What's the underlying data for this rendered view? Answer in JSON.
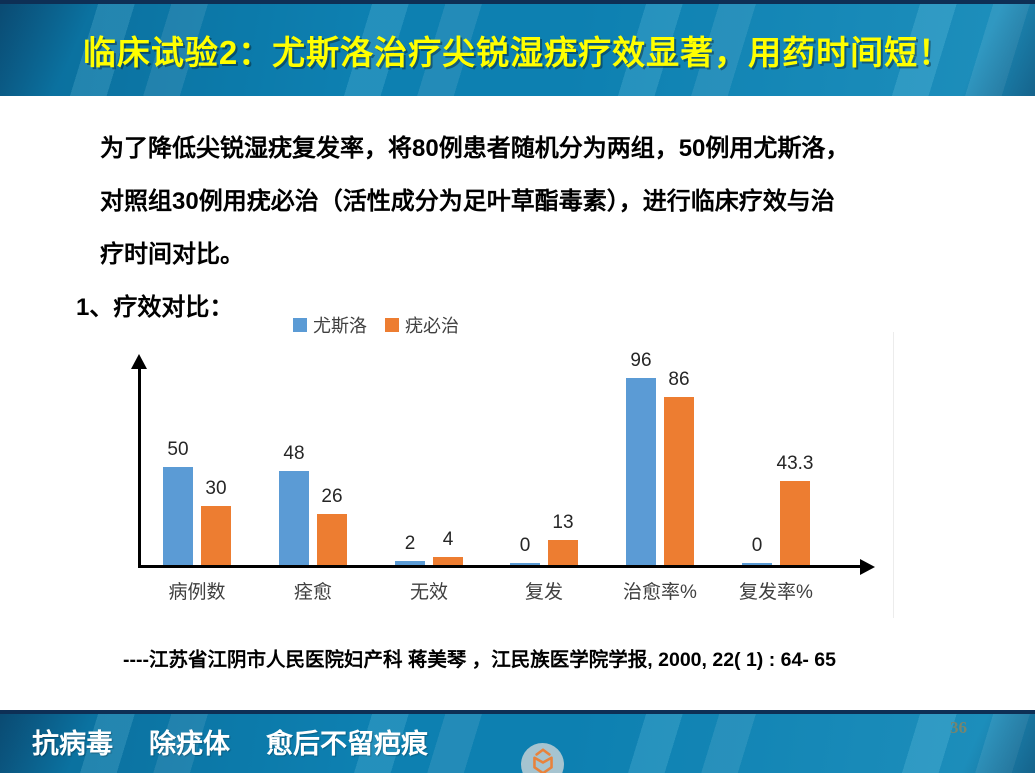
{
  "header": {
    "title": "临床试验2：尤斯洛治疗尖锐湿疣疗效显著，用药时间短！"
  },
  "body": {
    "lines": [
      "为了降低尖锐湿疣复发率，将80例患者随机分为两组，50例用尤斯洛，",
      "对照组30例用疣必治（活性成分为足叶草酯毒素），进行临床疗效与治",
      "疗时间对比。"
    ],
    "section_heading": "1、疗效对比："
  },
  "chart_data": {
    "type": "bar",
    "categories": [
      "病例数",
      "痊愈",
      "无效",
      "复发",
      "治愈率%",
      "复发率%"
    ],
    "series": [
      {
        "name": "尤斯洛",
        "color": "#5B9BD5",
        "values": [
          50,
          48,
          2,
          0,
          96,
          0
        ]
      },
      {
        "name": "疣必治",
        "color": "#ED7D31",
        "values": [
          30,
          26,
          4,
          13,
          86,
          43.3
        ]
      }
    ],
    "title": "",
    "xlabel": "",
    "ylabel": "",
    "ylim": [
      0,
      105
    ],
    "grid": false,
    "legend_position": "top-center",
    "value_labels": true,
    "axis_arrows": true
  },
  "citation": "----江苏省江阴市人民医院妇产科  蒋美琴  ，江民族医学院学报, 2000, 22( 1) : 64- 65",
  "footer": {
    "slogans": [
      "抗病毒",
      "除疣体",
      "愈后不留疤痕"
    ],
    "page_number": "36",
    "logo_icon": "orange-cube-logo-icon"
  },
  "colors": {
    "band_blue": "#0D80B1",
    "title_yellow": "#FFFF00",
    "bar_blue": "#5B9BD5",
    "bar_orange": "#ED7D31",
    "logo_orange": "#E8823B"
  }
}
